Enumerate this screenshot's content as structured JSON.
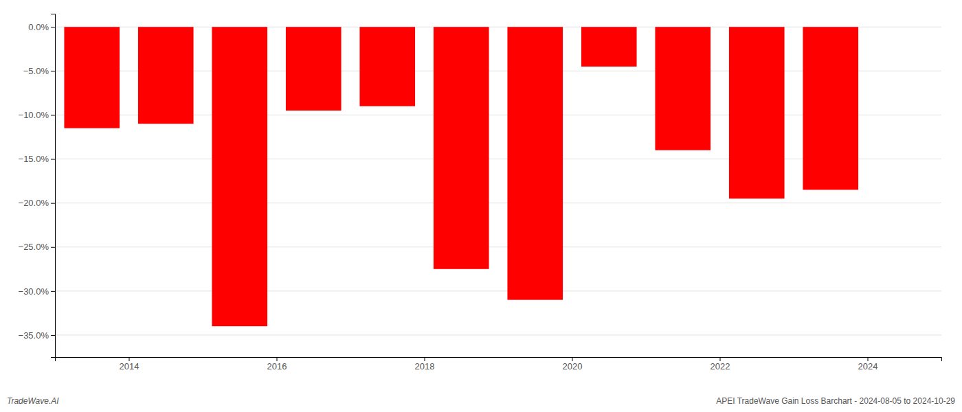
{
  "chart_data": {
    "type": "bar",
    "title": "APEI TradeWave Gain Loss Barchart - 2024-08-05 to 2024-10-29",
    "annotations": [
      "TradeWave.AI"
    ],
    "x": [
      2013.5,
      2014.5,
      2015.5,
      2016.5,
      2017.5,
      2018.5,
      2019.5,
      2020.5,
      2021.5,
      2022.5,
      2023.5
    ],
    "values": [
      -11.5,
      -11.0,
      -34.0,
      -9.5,
      -9.0,
      -27.5,
      -31.0,
      -4.5,
      -14.0,
      -19.5,
      -18.5
    ],
    "color": "#FF0000",
    "xlim": [
      2013.0,
      2025.0
    ],
    "xticks": [
      2014,
      2016,
      2018,
      2020,
      2022,
      2024
    ],
    "ylim": [
      -37.5,
      1.5
    ],
    "yticks": [
      {
        "value": 0.0,
        "label": "0.0%"
      },
      {
        "value": -5.0,
        "label": "−5.0%"
      },
      {
        "value": -10.0,
        "label": "−10.0%"
      },
      {
        "value": -15.0,
        "label": "−15.0%"
      },
      {
        "value": -20.0,
        "label": "−20.0%"
      },
      {
        "value": -25.0,
        "label": "−25.0%"
      },
      {
        "value": -30.0,
        "label": "−30.0%"
      },
      {
        "value": -35.0,
        "label": "−35.0%"
      }
    ],
    "grid": true
  }
}
